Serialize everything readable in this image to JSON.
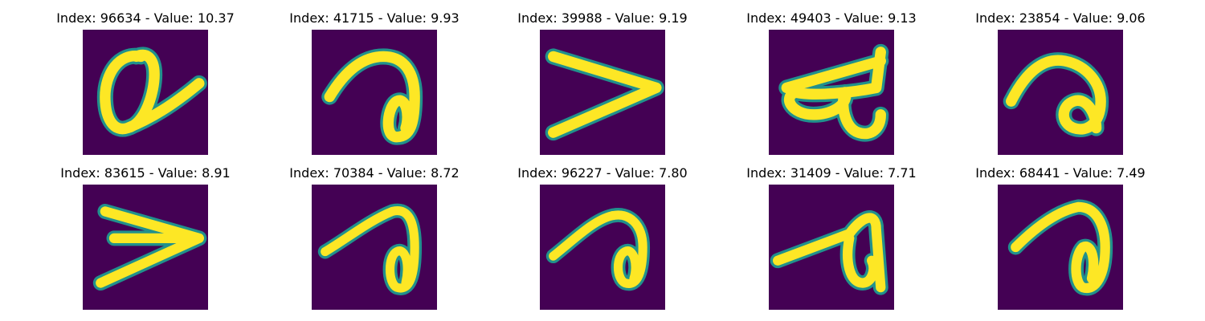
{
  "palette": {
    "background": "#440154",
    "mid_low": "#31688e",
    "mid": "#21918c",
    "mid_high": "#5ec962",
    "foreground": "#fde725"
  },
  "panels": [
    {
      "title": "Index: 96634 - Value: 10.37",
      "glyph": "a-loop"
    },
    {
      "title": "Index: 41715 - Value: 9.93",
      "glyph": "hook-loop"
    },
    {
      "title": "Index: 39988 - Value: 9.19",
      "glyph": "greater-than"
    },
    {
      "title": "Index: 49403 - Value: 9.13",
      "glyph": "devanagari-like"
    },
    {
      "title": "Index: 23854 - Value: 9.06",
      "glyph": "hook-loop-small"
    },
    {
      "title": "Index: 83615 - Value: 8.91",
      "glyph": "greater-than"
    },
    {
      "title": "Index: 70384 - Value: 8.72",
      "glyph": "hook-loop"
    },
    {
      "title": "Index: 96227 - Value: 7.80",
      "glyph": "hook-loop"
    },
    {
      "title": "Index: 31409 - Value: 7.71",
      "glyph": "hook-loop-angular"
    },
    {
      "title": "Index: 68441 - Value: 7.49",
      "glyph": "hook-loop"
    }
  ]
}
